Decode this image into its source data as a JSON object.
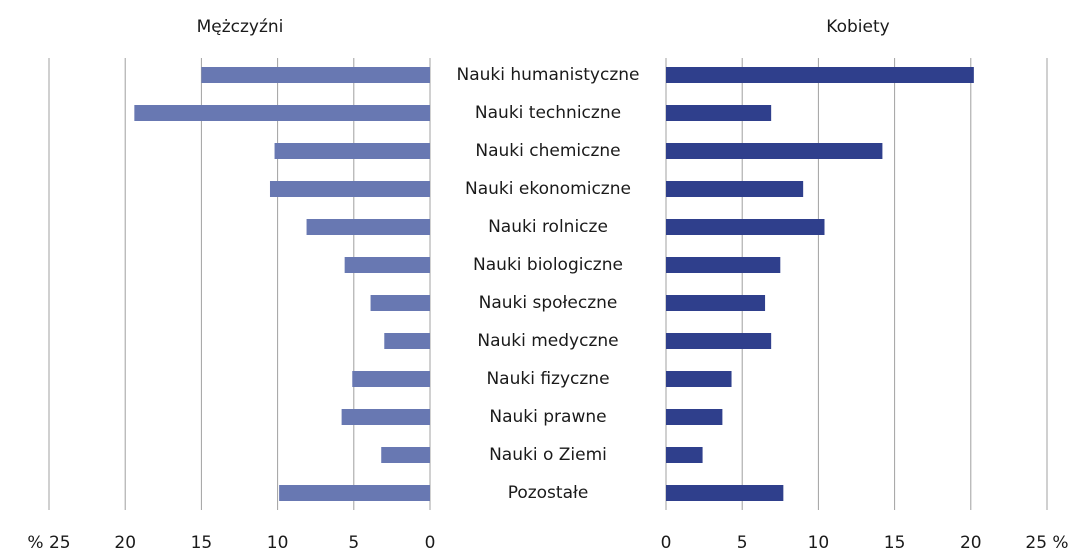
{
  "chart_data": {
    "type": "bar",
    "orientation": "horizontal",
    "categories": [
      "Nauki humanistyczne",
      "Nauki techniczne",
      "Nauki chemiczne",
      "Nauki ekonomiczne",
      "Nauki rolnicze",
      "Nauki biologiczne",
      "Nauki społeczne",
      "Nauki medyczne",
      "Nauki fizyczne",
      "Nauki prawne",
      "Nauki o Ziemi",
      "Pozostałe"
    ],
    "series": [
      {
        "name": "Mężczyźni",
        "color": "#6878b2",
        "axis": "x",
        "values": [
          15,
          19.4,
          10.2,
          10.5,
          8.1,
          5.6,
          3.9,
          3.0,
          5.1,
          5.8,
          3.2,
          9.9
        ]
      },
      {
        "name": "Kobiety",
        "color": "#2f3f8c",
        "axis": "x2",
        "values": [
          20.2,
          6.9,
          14.2,
          9.0,
          10.4,
          7.5,
          6.5,
          6.9,
          4.3,
          3.7,
          2.4,
          7.7
        ]
      }
    ],
    "xlim": [
      0,
      25
    ],
    "xticks": [
      {
        "value": 25,
        "label": "% 25"
      },
      20,
      15,
      10,
      5,
      0
    ],
    "x2lim": [
      0,
      25
    ],
    "x2ticks": [
      0,
      5,
      10,
      15,
      20,
      {
        "value": 25,
        "label": "25 %"
      }
    ],
    "grid": true
  }
}
